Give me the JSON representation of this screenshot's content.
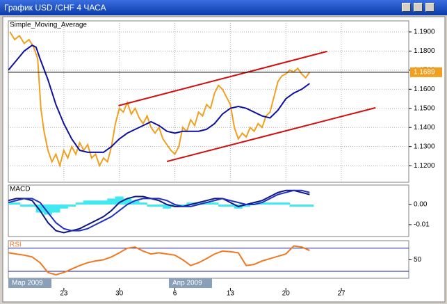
{
  "window": {
    "title": "График USD /CHF  4 ЧАСА"
  },
  "chart_data": [
    {
      "type": "line",
      "title": "Simple_Moving_Average",
      "xlim": [
        16,
        66.5
      ],
      "ylim": [
        1.1113,
        1.1958
      ],
      "yticks": [
        {
          "value": 1.19,
          "label": "1.1900"
        },
        {
          "value": 1.18,
          "label": "1.1800"
        },
        {
          "value": 1.17,
          "label": "1.1700"
        },
        {
          "value": 1.16,
          "label": "1.1600"
        },
        {
          "value": 1.15,
          "label": "1.1500"
        },
        {
          "value": 1.14,
          "label": "1.1400"
        },
        {
          "value": 1.13,
          "label": "1.1300"
        },
        {
          "value": 1.12,
          "label": "1.1200"
        }
      ],
      "grid": true,
      "current_price": {
        "value": 1.1689,
        "label": "1.1689"
      },
      "series": [
        {
          "color": "#f0a020",
          "x": [
            16.2,
            16.8,
            17.4,
            18,
            18.6,
            19.2,
            19.7,
            20.1,
            20.5,
            21,
            21.5,
            22,
            22.5,
            23,
            23.5,
            24,
            24.5,
            25,
            25.5,
            26,
            26.5,
            27,
            27.5,
            28,
            28.5,
            29,
            29.5,
            30,
            30.5,
            31,
            31.5,
            32,
            32.5,
            33,
            33.5,
            34,
            34.5,
            35,
            35.5,
            36,
            36.5,
            37,
            37.5,
            38,
            38.5,
            39,
            39.5,
            40,
            40.5,
            41,
            41.5,
            42,
            42.5,
            43,
            43.5,
            44,
            44.5,
            45,
            45.5,
            46,
            46.5,
            47,
            47.5,
            48,
            48.5,
            49,
            49.5,
            50,
            50.5,
            51,
            51.5,
            52,
            52.5,
            53,
            53.5,
            54
          ],
          "values": [
            1.19,
            1.186,
            1.188,
            1.184,
            1.186,
            1.182,
            1.176,
            1.15,
            1.138,
            1.128,
            1.122,
            1.126,
            1.12,
            1.128,
            1.124,
            1.13,
            1.126,
            1.132,
            1.128,
            1.131,
            1.124,
            1.126,
            1.12,
            1.124,
            1.122,
            1.13,
            1.142,
            1.15,
            1.148,
            1.153,
            1.147,
            1.15,
            1.145,
            1.142,
            1.146,
            1.14,
            1.137,
            1.14,
            1.134,
            1.131,
            1.128,
            1.126,
            1.13,
            1.14,
            1.138,
            1.144,
            1.141,
            1.148,
            1.146,
            1.152,
            1.15,
            1.158,
            1.162,
            1.16,
            1.156,
            1.152,
            1.14,
            1.134,
            1.137,
            1.135,
            1.14,
            1.138,
            1.142,
            1.14,
            1.146,
            1.148,
            1.156,
            1.164,
            1.167,
            1.168,
            1.17,
            1.169,
            1.171,
            1.168,
            1.166,
            1.169
          ]
        },
        {
          "color": "#1010a0",
          "x": [
            16,
            17,
            18,
            19,
            19.5,
            20,
            21,
            22,
            23,
            24,
            25,
            26,
            27,
            28,
            29,
            30,
            31,
            32,
            33,
            34,
            35,
            36,
            37,
            38,
            39,
            40,
            41,
            42,
            43,
            44,
            45,
            46,
            47,
            48,
            49,
            50,
            51,
            52,
            53,
            54
          ],
          "values": [
            1.17,
            1.175,
            1.18,
            1.183,
            1.182,
            1.176,
            1.165,
            1.152,
            1.142,
            1.134,
            1.128,
            1.127,
            1.127,
            1.127,
            1.13,
            1.134,
            1.137,
            1.139,
            1.141,
            1.143,
            1.141,
            1.138,
            1.137,
            1.138,
            1.138,
            1.138,
            1.139,
            1.142,
            1.147,
            1.15,
            1.151,
            1.15,
            1.148,
            1.146,
            1.145,
            1.149,
            1.155,
            1.158,
            1.16,
            1.163
          ]
        },
        {
          "color": "#d01010",
          "x": [
            29.9,
            56.2
          ],
          "values": [
            1.1514,
            1.1798
          ]
        },
        {
          "color": "#d01010",
          "x": [
            36,
            62.3
          ],
          "values": [
            1.1222,
            1.1503
          ]
        }
      ]
    },
    {
      "type": "line",
      "title": "MACD",
      "xlim": [
        16,
        66.5
      ],
      "ylim": [
        -0.0159,
        0.0097
      ],
      "yticks": [
        {
          "value": 0,
          "label": "0.00"
        },
        {
          "value": -0.01,
          "label": "-0.01"
        }
      ],
      "series": [
        {
          "color": "#40e8f0",
          "kind": "bar",
          "x": [
            16,
            17,
            18,
            19,
            20,
            21,
            22,
            23,
            24,
            25,
            26,
            27,
            28,
            29,
            30,
            31,
            32,
            33,
            34,
            35,
            36,
            37,
            38,
            39,
            40,
            41,
            42,
            43,
            44,
            45,
            46,
            47,
            48,
            49,
            50,
            51,
            52,
            53,
            54
          ],
          "values": [
            0.001,
            0.001,
            0,
            -0.001,
            -0.004,
            -0.005,
            -0.004,
            -0.002,
            0,
            0.001,
            0.002,
            0.002,
            0.002,
            0.003,
            0.004,
            0.003,
            0.002,
            0.001,
            0,
            -0.001,
            -0.002,
            -0.001,
            0,
            0.001,
            0.001,
            0.001,
            0.001,
            0,
            -0.001,
            -0.002,
            0,
            0.001,
            0.001,
            0.001,
            0.001,
            0.001,
            0,
            -0.001,
            -0.001
          ]
        },
        {
          "color": "#101880",
          "x": [
            16,
            17,
            18,
            19,
            20,
            21,
            22,
            23,
            24,
            25,
            26,
            27,
            28,
            29,
            30,
            31,
            32,
            33,
            34,
            35,
            36,
            37,
            38,
            39,
            40,
            41,
            42,
            43,
            44,
            45,
            46,
            47,
            48,
            49,
            50,
            51,
            52,
            53,
            54
          ],
          "values": [
            0.002,
            0.003,
            0.003,
            0.002,
            -0.003,
            -0.009,
            -0.013,
            -0.014,
            -0.013,
            -0.012,
            -0.01,
            -0.008,
            -0.006,
            -0.003,
            0.001,
            0.003,
            0.004,
            0.004,
            0.003,
            0.002,
            0.0,
            -0.001,
            -0.001,
            0.0,
            0.001,
            0.002,
            0.003,
            0.003,
            0.001,
            -0.001,
            0.0,
            0.001,
            0.002,
            0.004,
            0.006,
            0.007,
            0.007,
            0.006,
            0.005
          ]
        },
        {
          "color": "#2030c0",
          "x": [
            16,
            17,
            18,
            19,
            20,
            21,
            22,
            23,
            24,
            25,
            26,
            27,
            28,
            29,
            30,
            31,
            32,
            33,
            34,
            35,
            36,
            37,
            38,
            39,
            40,
            41,
            42,
            43,
            44,
            45,
            46,
            47,
            48,
            49,
            50,
            51,
            52,
            53,
            54
          ],
          "values": [
            0.001,
            0.002,
            0.003,
            0.003,
            0.001,
            -0.004,
            -0.009,
            -0.012,
            -0.013,
            -0.013,
            -0.012,
            -0.01,
            -0.008,
            -0.006,
            -0.003,
            0.0,
            0.002,
            0.003,
            0.003,
            0.003,
            0.002,
            0.0,
            -0.001,
            -0.001,
            0.0,
            0.001,
            0.002,
            0.003,
            0.002,
            0.001,
            0.0,
            0.0,
            0.001,
            0.003,
            0.005,
            0.006,
            0.007,
            0.007,
            0.006
          ]
        }
      ]
    },
    {
      "type": "line",
      "title": "RSI",
      "xlim": [
        16,
        66.5
      ],
      "ylim": [
        18,
        83
      ],
      "yticks": [
        50
      ],
      "levels": [
        30,
        70
      ],
      "xticks": [
        23,
        {
          "value": 30,
          "label": "30"
        },
        {
          "value": 37,
          "label": "6"
        },
        {
          "value": 44,
          "label": "13"
        },
        {
          "value": 51,
          "label": "20"
        },
        {
          "value": 58,
          "label": "27"
        }
      ],
      "period_labels": [
        "Мар 2009",
        "Апр 2009"
      ],
      "series": [
        {
          "color": "#f07820",
          "x": [
            16,
            17,
            18,
            19,
            20,
            21,
            22,
            23,
            24,
            25,
            26,
            27,
            28,
            29,
            30,
            31,
            32,
            33,
            34,
            35,
            36,
            37,
            38,
            39,
            40,
            41,
            42,
            43,
            44,
            45,
            46,
            47,
            48,
            49,
            50,
            51,
            52,
            53,
            54
          ],
          "values": [
            62,
            60,
            58,
            55,
            45,
            28,
            24,
            28,
            34,
            40,
            45,
            48,
            50,
            55,
            62,
            70,
            72,
            65,
            60,
            62,
            60,
            58,
            50,
            40,
            45,
            52,
            60,
            65,
            64,
            62,
            40,
            42,
            48,
            52,
            56,
            60,
            74,
            72,
            66
          ]
        }
      ]
    }
  ]
}
